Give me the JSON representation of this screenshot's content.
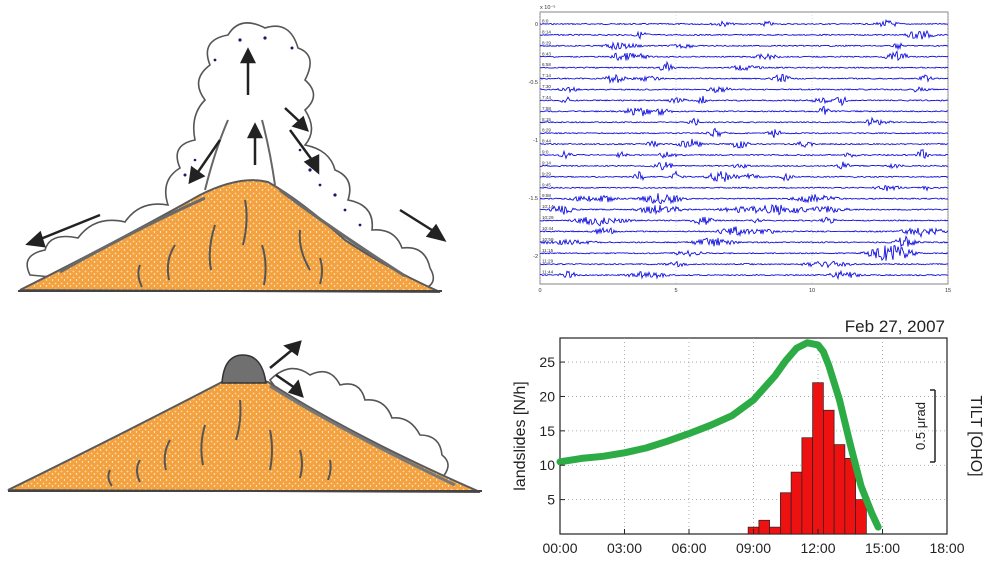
{
  "chart_data": [
    {
      "type": "line",
      "title": "",
      "xlabel": "",
      "ylabel": "",
      "exponent_label": "x 10⁻⁵",
      "x_ticks": [
        "0",
        "5",
        "10",
        "15"
      ],
      "xlim": [
        0,
        15
      ],
      "y_ticks": [
        "0",
        "-0.5",
        "-1",
        "-1.5",
        "-2"
      ],
      "row_labels": [
        "8:0",
        "8:14",
        "8:29",
        "8:43",
        "6:58",
        "7:14",
        "7:30",
        "7:44",
        "7:58",
        "8:15",
        "8:29",
        "8:44",
        "9:0",
        "9:14",
        "9:29",
        "9:45",
        "9:58",
        "10:14",
        "10:29",
        "10:44",
        "10:59",
        "11:15",
        "11:29",
        "11:44"
      ],
      "grid": true,
      "trace_color": "#1010e0"
    },
    {
      "type": "bar",
      "title": "Feb 27, 2007",
      "xlabel": "",
      "ylabel": "landslides [N/h]",
      "y2label": "TILT [OHO]",
      "scale_bar_label": "0.5 μrad",
      "x_ticks": [
        "00:00",
        "03:00",
        "06:00",
        "09:00",
        "12:00",
        "15:00",
        "18:00"
      ],
      "xlim": [
        0,
        18
      ],
      "y_ticks": [
        "5",
        "10",
        "15",
        "20",
        "25"
      ],
      "ylim": [
        0,
        28.5
      ],
      "grid": true,
      "series": [
        {
          "kind": "bar",
          "color": "#ee1111",
          "bins": [
            {
              "x": 9.0,
              "value": 1
            },
            {
              "x": 9.5,
              "value": 2
            },
            {
              "x": 10.0,
              "value": 1
            },
            {
              "x": 10.5,
              "value": 6
            },
            {
              "x": 11.0,
              "value": 9
            },
            {
              "x": 11.5,
              "value": 14
            },
            {
              "x": 12.0,
              "value": 22
            },
            {
              "x": 12.5,
              "value": 18
            },
            {
              "x": 13.0,
              "value": 13
            },
            {
              "x": 13.5,
              "value": 11
            },
            {
              "x": 14.0,
              "value": 5
            }
          ],
          "bin_width": 0.5
        },
        {
          "kind": "line",
          "color": "#2dab45",
          "x": [
            0,
            1,
            2,
            3,
            4,
            5,
            6,
            7,
            8,
            9,
            10,
            10.5,
            11,
            11.5,
            12,
            12.25,
            12.5,
            13,
            13.5,
            14,
            14.5,
            14.8
          ],
          "y": [
            10.5,
            11,
            11.3,
            11.8,
            12.5,
            13.5,
            14.6,
            15.8,
            17.2,
            19.5,
            23,
            25.2,
            27,
            27.8,
            27.5,
            26.5,
            24.5,
            19.5,
            13,
            7,
            3,
            1
          ]
        }
      ]
    }
  ]
}
